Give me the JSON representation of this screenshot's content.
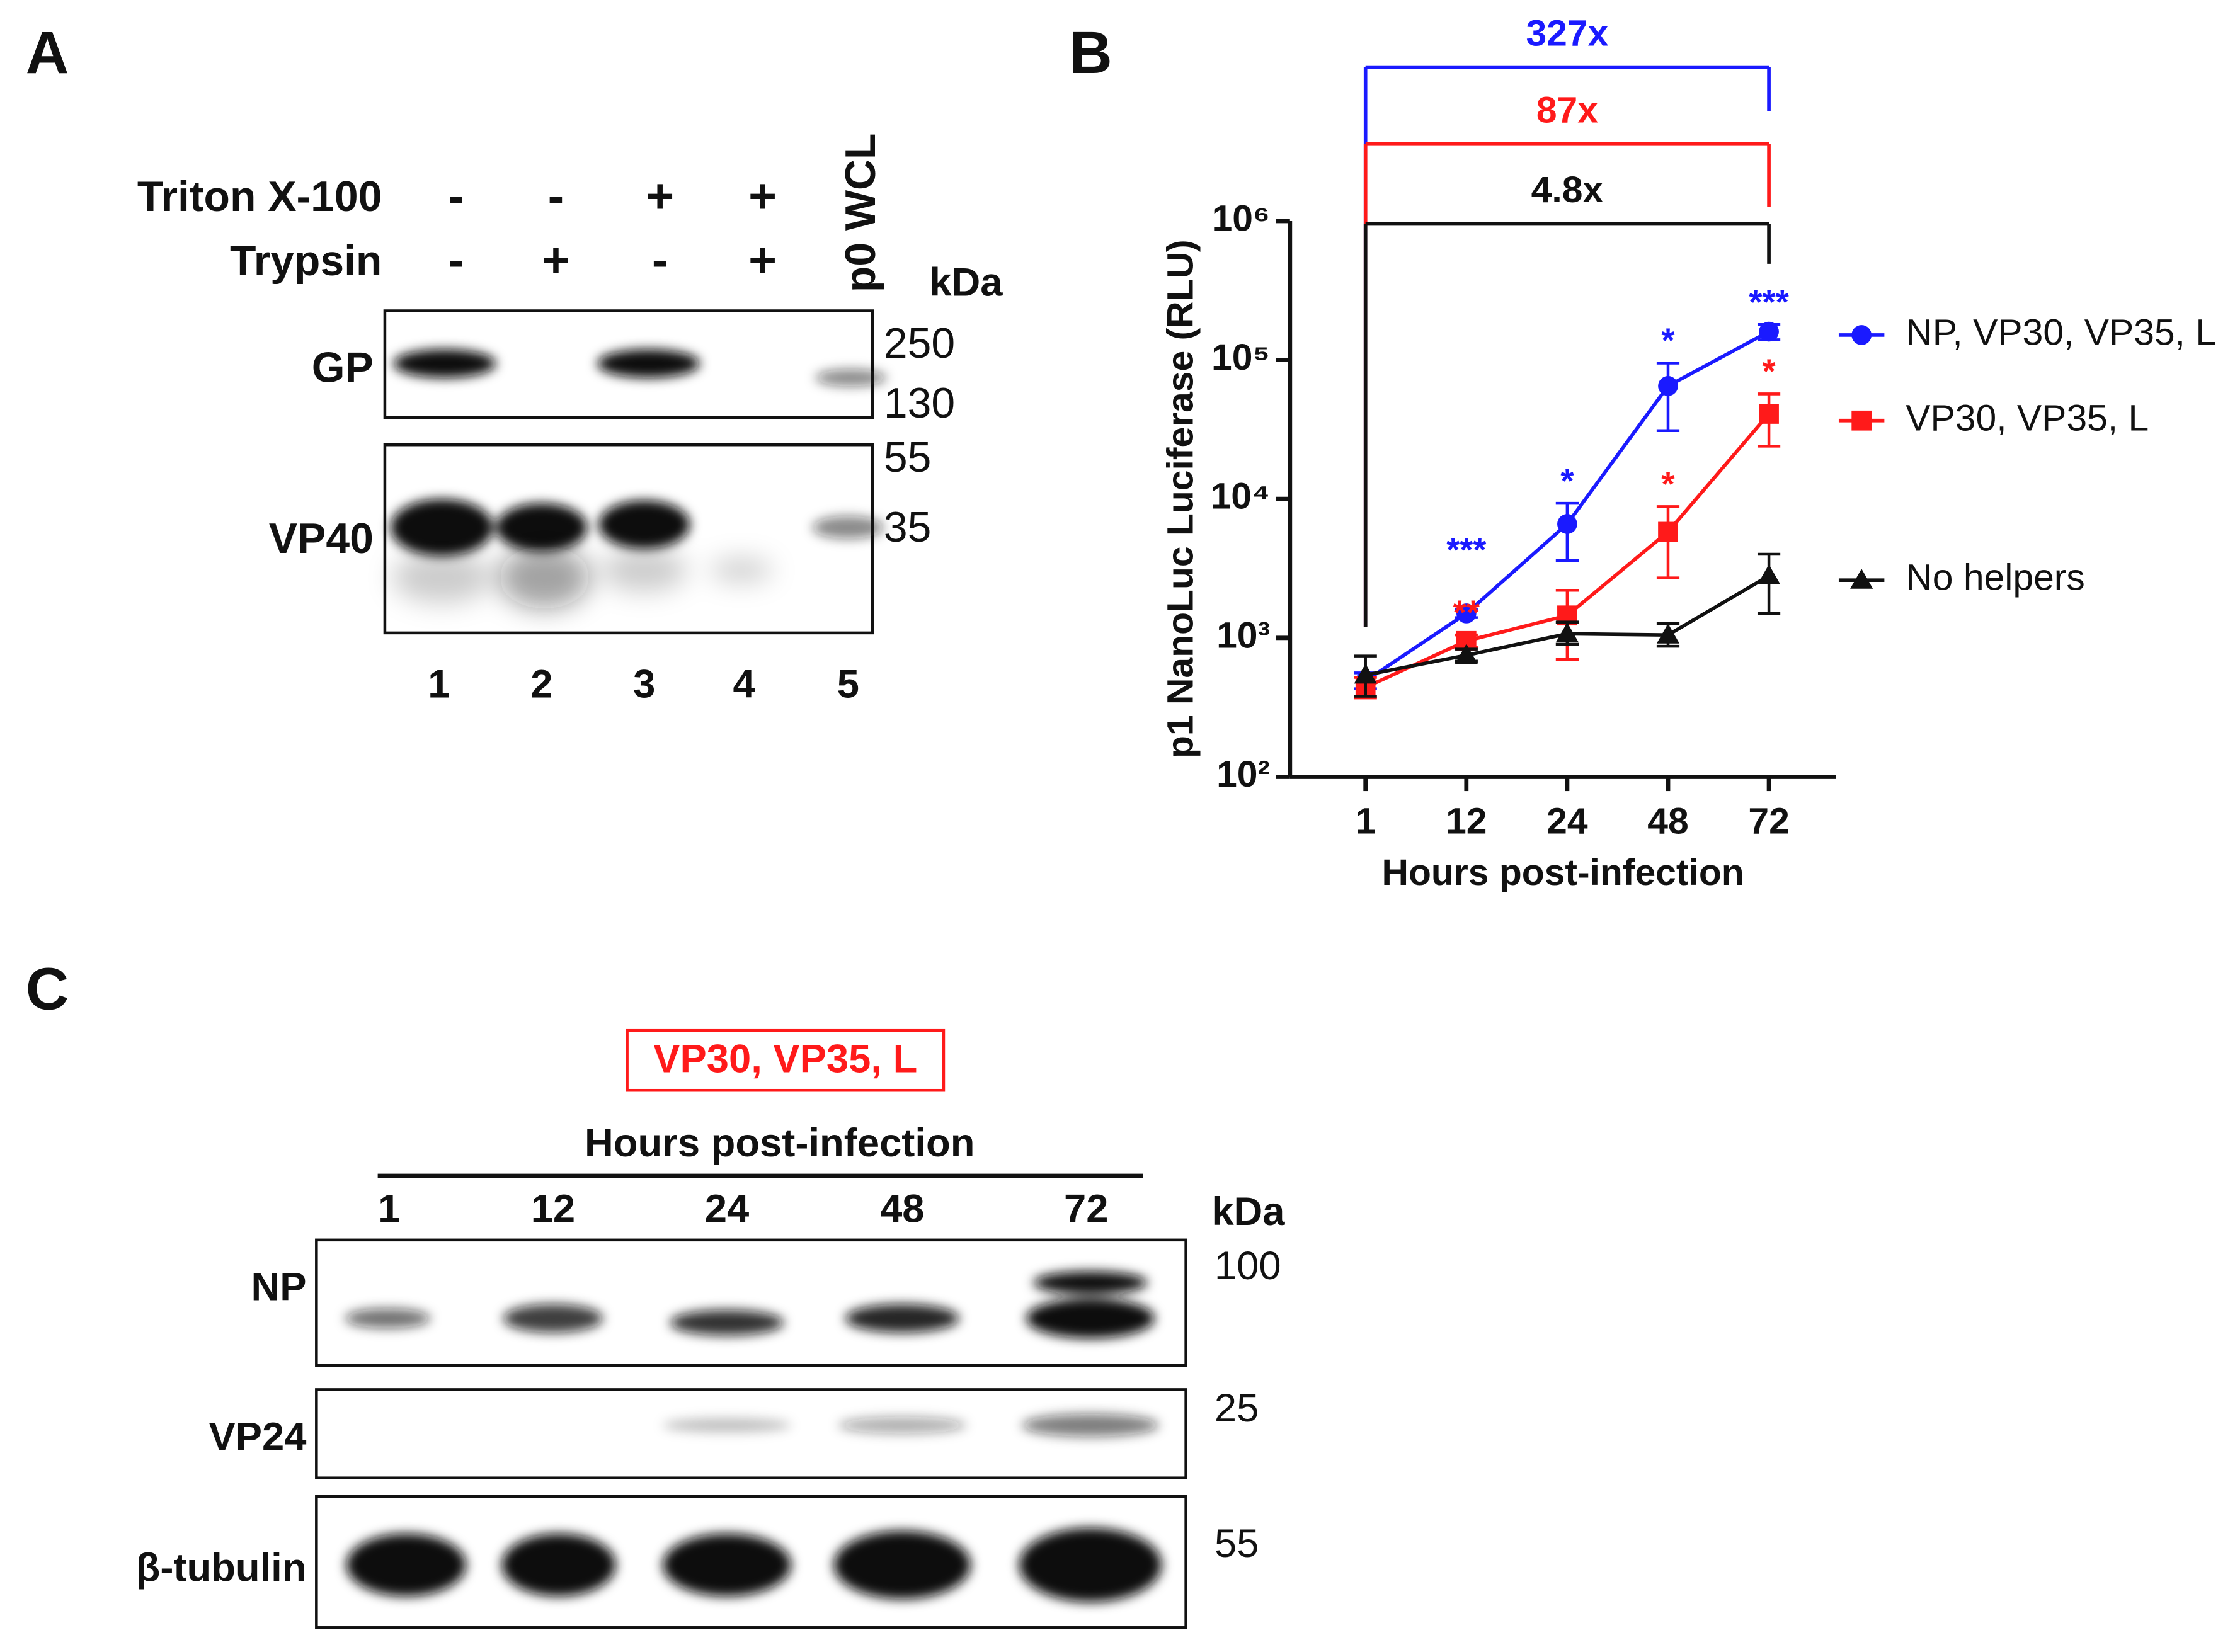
{
  "panel_a": {
    "letter": "A",
    "rows": [
      {
        "label": "Triton X-100",
        "signs": [
          "-",
          "-",
          "+",
          "+"
        ]
      },
      {
        "label": "Trypsin",
        "signs": [
          "-",
          "+",
          "-",
          "+"
        ]
      }
    ],
    "lane5_label": "p0 WCL",
    "kda": "kDa",
    "blots": [
      "GP",
      "VP40"
    ],
    "markers": [
      "250",
      "130",
      "55",
      "35"
    ],
    "lanes": [
      "1",
      "2",
      "3",
      "4",
      "5"
    ]
  },
  "panel_b": {
    "letter": "B"
  },
  "panel_c": {
    "letter": "C",
    "box_label": "VP30, VP35, L",
    "header": "Hours post-infection",
    "lanes": [
      "1",
      "12",
      "24",
      "48",
      "72"
    ],
    "kda": "kDa",
    "blots": [
      "NP",
      "VP24",
      "β-tubulin"
    ],
    "markers": [
      "100",
      "25",
      "55"
    ]
  },
  "chart_data": {
    "type": "line",
    "xlabel": "Hours post-infection",
    "ylabel": "p1 NanoLuc Luciferase (RLU)",
    "categories": [
      "1",
      "12",
      "24",
      "48",
      "72"
    ],
    "log_scale": true,
    "ylim": [
      100,
      1000000
    ],
    "yticks": [
      {
        "value": 100,
        "label": "10²"
      },
      {
        "value": 1000,
        "label": "10³"
      },
      {
        "value": 10000,
        "label": "10⁴"
      },
      {
        "value": 100000,
        "label": "10⁵"
      },
      {
        "value": 1000000,
        "label": "10⁶"
      }
    ],
    "series": [
      {
        "name": "NP, VP30, VP35, L",
        "color": "#1a1aff",
        "marker": "circle",
        "values": [
          490,
          1500,
          6600,
          65000,
          160000
        ],
        "upper": [
          560,
          1600,
          9300,
          95000,
          180000
        ],
        "lower": [
          430,
          1400,
          3600,
          31000,
          140000
        ],
        "stars": [
          null,
          "***",
          "*",
          "*",
          "***"
        ]
      },
      {
        "name": "VP30, VP35, L",
        "color": "#ff1a1a",
        "marker": "square",
        "values": [
          440,
          950,
          1450,
          5800,
          41000
        ],
        "upper": [
          520,
          1050,
          2200,
          8800,
          57000
        ],
        "lower": [
          370,
          860,
          700,
          2700,
          24000
        ],
        "stars": [
          null,
          "**",
          null,
          "*",
          "*"
        ]
      },
      {
        "name": "No helpers",
        "color": "#111111",
        "marker": "triangle",
        "values": [
          540,
          750,
          1070,
          1050,
          2800
        ],
        "upper": [
          740,
          830,
          1300,
          1270,
          4000
        ],
        "lower": [
          380,
          680,
          900,
          870,
          1500
        ],
        "stars": [
          null,
          null,
          null,
          null,
          null
        ]
      }
    ],
    "brackets": [
      {
        "label": "327x",
        "color": "#1a1aff"
      },
      {
        "label": "87x",
        "color": "#ff1a1a"
      },
      {
        "label": "4.8x",
        "color": "#111111"
      }
    ]
  }
}
